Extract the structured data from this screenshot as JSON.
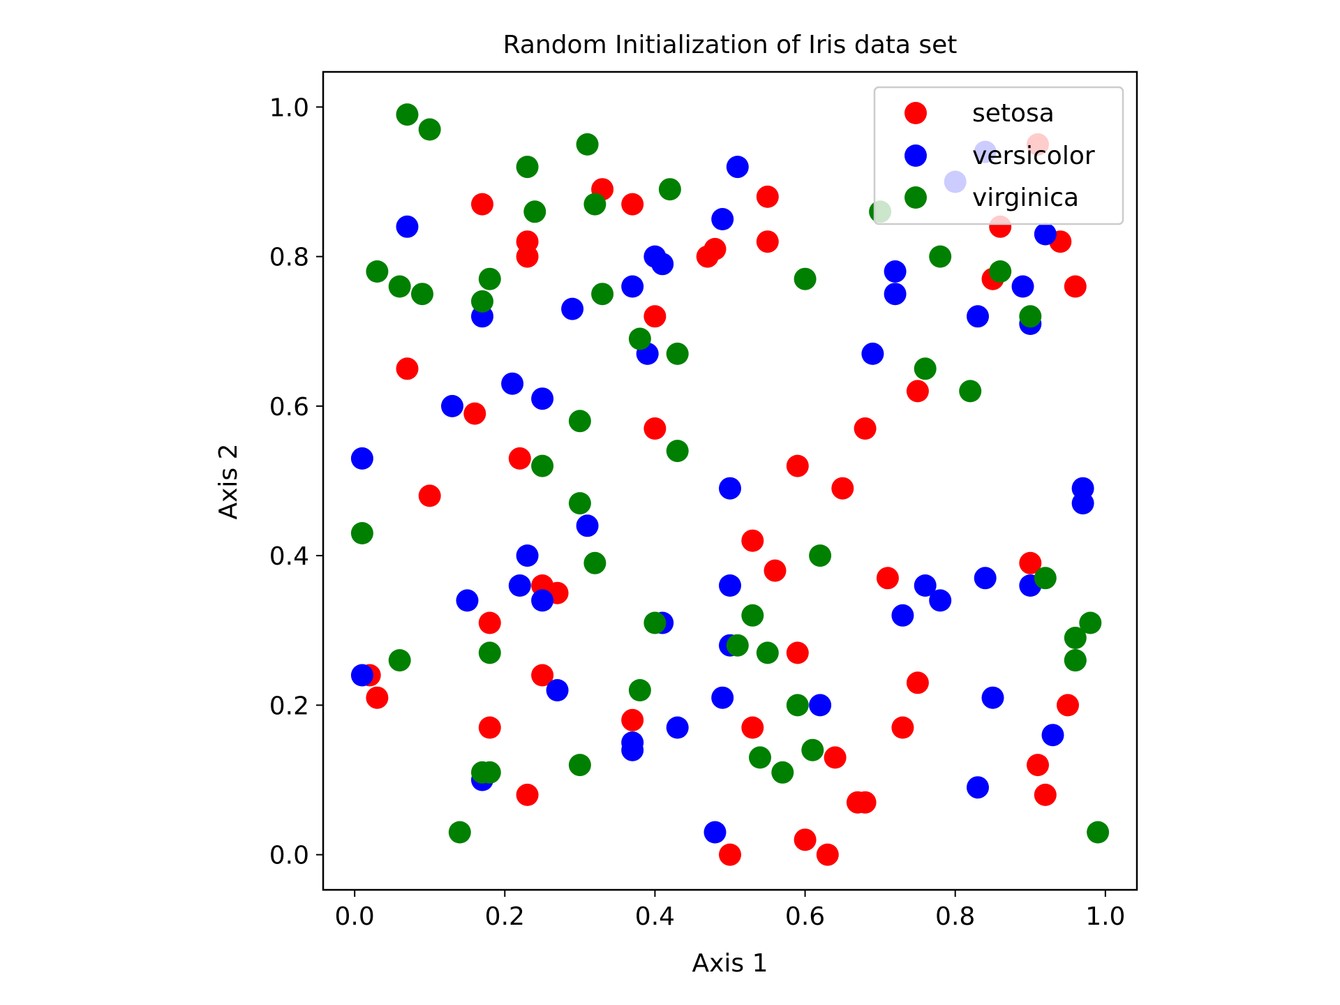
{
  "chart_data": {
    "type": "scatter",
    "title": "Random Initialization of Iris data set",
    "xlabel": "Axis 1",
    "ylabel": "Axis 2",
    "xlim": [
      -0.042,
      1.042
    ],
    "ylim": [
      -0.047,
      1.047
    ],
    "x_ticks": [
      "0.0",
      "0.2",
      "0.4",
      "0.6",
      "0.8",
      "1.0"
    ],
    "y_ticks": [
      "0.0",
      "0.2",
      "0.4",
      "0.6",
      "0.8",
      "1.0"
    ],
    "grid": false,
    "legend_position": "top-right",
    "series": [
      {
        "name": "setosa",
        "color": "#ff0000",
        "points": [
          [
            0.02,
            0.24
          ],
          [
            0.03,
            0.21
          ],
          [
            0.07,
            0.65
          ],
          [
            0.1,
            0.48
          ],
          [
            0.16,
            0.59
          ],
          [
            0.17,
            0.87
          ],
          [
            0.18,
            0.17
          ],
          [
            0.18,
            0.31
          ],
          [
            0.22,
            0.53
          ],
          [
            0.23,
            0.82
          ],
          [
            0.23,
            0.8
          ],
          [
            0.23,
            0.08
          ],
          [
            0.25,
            0.24
          ],
          [
            0.25,
            0.36
          ],
          [
            0.27,
            0.35
          ],
          [
            0.33,
            0.89
          ],
          [
            0.37,
            0.87
          ],
          [
            0.37,
            0.18
          ],
          [
            0.4,
            0.57
          ],
          [
            0.4,
            0.72
          ],
          [
            0.47,
            0.8
          ],
          [
            0.48,
            0.81
          ],
          [
            0.5,
            0.0
          ],
          [
            0.53,
            0.42
          ],
          [
            0.53,
            0.17
          ],
          [
            0.55,
            0.88
          ],
          [
            0.55,
            0.82
          ],
          [
            0.56,
            0.38
          ],
          [
            0.59,
            0.52
          ],
          [
            0.59,
            0.27
          ],
          [
            0.6,
            0.02
          ],
          [
            0.63,
            0.0
          ],
          [
            0.64,
            0.13
          ],
          [
            0.65,
            0.49
          ],
          [
            0.67,
            0.07
          ],
          [
            0.68,
            0.57
          ],
          [
            0.68,
            0.07
          ],
          [
            0.71,
            0.37
          ],
          [
            0.73,
            0.17
          ],
          [
            0.75,
            0.62
          ],
          [
            0.75,
            0.23
          ],
          [
            0.85,
            0.77
          ],
          [
            0.86,
            0.84
          ],
          [
            0.9,
            0.39
          ],
          [
            0.91,
            0.12
          ],
          [
            0.91,
            0.95
          ],
          [
            0.92,
            0.08
          ],
          [
            0.94,
            0.82
          ],
          [
            0.95,
            0.2
          ],
          [
            0.96,
            0.76
          ]
        ]
      },
      {
        "name": "versicolor",
        "color": "#0000ff",
        "points": [
          [
            0.01,
            0.53
          ],
          [
            0.01,
            0.24
          ],
          [
            0.07,
            0.84
          ],
          [
            0.13,
            0.6
          ],
          [
            0.15,
            0.34
          ],
          [
            0.17,
            0.72
          ],
          [
            0.17,
            0.1
          ],
          [
            0.21,
            0.63
          ],
          [
            0.22,
            0.36
          ],
          [
            0.23,
            0.4
          ],
          [
            0.25,
            0.61
          ],
          [
            0.25,
            0.34
          ],
          [
            0.27,
            0.22
          ],
          [
            0.29,
            0.73
          ],
          [
            0.31,
            0.44
          ],
          [
            0.37,
            0.15
          ],
          [
            0.37,
            0.14
          ],
          [
            0.37,
            0.76
          ],
          [
            0.39,
            0.67
          ],
          [
            0.4,
            0.8
          ],
          [
            0.41,
            0.79
          ],
          [
            0.41,
            0.31
          ],
          [
            0.43,
            0.17
          ],
          [
            0.48,
            0.03
          ],
          [
            0.49,
            0.85
          ],
          [
            0.49,
            0.21
          ],
          [
            0.5,
            0.49
          ],
          [
            0.5,
            0.36
          ],
          [
            0.5,
            0.28
          ],
          [
            0.51,
            0.92
          ],
          [
            0.62,
            0.2
          ],
          [
            0.69,
            0.67
          ],
          [
            0.72,
            0.78
          ],
          [
            0.72,
            0.75
          ],
          [
            0.73,
            0.32
          ],
          [
            0.76,
            0.36
          ],
          [
            0.78,
            0.34
          ],
          [
            0.8,
            0.9
          ],
          [
            0.83,
            0.72
          ],
          [
            0.83,
            0.09
          ],
          [
            0.84,
            0.94
          ],
          [
            0.84,
            0.37
          ],
          [
            0.85,
            0.21
          ],
          [
            0.89,
            0.76
          ],
          [
            0.9,
            0.71
          ],
          [
            0.9,
            0.36
          ],
          [
            0.92,
            0.83
          ],
          [
            0.93,
            0.16
          ],
          [
            0.97,
            0.49
          ],
          [
            0.97,
            0.47
          ]
        ]
      },
      {
        "name": "virginica",
        "color": "#008000",
        "points": [
          [
            0.01,
            0.43
          ],
          [
            0.03,
            0.78
          ],
          [
            0.06,
            0.76
          ],
          [
            0.06,
            0.26
          ],
          [
            0.07,
            0.99
          ],
          [
            0.09,
            0.75
          ],
          [
            0.1,
            0.97
          ],
          [
            0.14,
            0.03
          ],
          [
            0.17,
            0.74
          ],
          [
            0.17,
            0.11
          ],
          [
            0.18,
            0.77
          ],
          [
            0.18,
            0.11
          ],
          [
            0.18,
            0.27
          ],
          [
            0.23,
            0.92
          ],
          [
            0.24,
            0.86
          ],
          [
            0.25,
            0.52
          ],
          [
            0.3,
            0.58
          ],
          [
            0.3,
            0.12
          ],
          [
            0.3,
            0.47
          ],
          [
            0.31,
            0.95
          ],
          [
            0.32,
            0.87
          ],
          [
            0.32,
            0.39
          ],
          [
            0.33,
            0.75
          ],
          [
            0.38,
            0.69
          ],
          [
            0.38,
            0.22
          ],
          [
            0.4,
            0.31
          ],
          [
            0.42,
            0.89
          ],
          [
            0.43,
            0.67
          ],
          [
            0.43,
            0.54
          ],
          [
            0.51,
            0.28
          ],
          [
            0.53,
            0.32
          ],
          [
            0.54,
            0.13
          ],
          [
            0.55,
            0.27
          ],
          [
            0.57,
            0.11
          ],
          [
            0.59,
            0.2
          ],
          [
            0.6,
            0.77
          ],
          [
            0.61,
            0.14
          ],
          [
            0.62,
            0.4
          ],
          [
            0.7,
            0.86
          ],
          [
            0.76,
            0.65
          ],
          [
            0.78,
            0.8
          ],
          [
            0.82,
            0.62
          ],
          [
            0.86,
            0.78
          ],
          [
            0.9,
            0.72
          ],
          [
            0.92,
            0.37
          ],
          [
            0.96,
            0.26
          ],
          [
            0.96,
            0.26
          ],
          [
            0.96,
            0.29
          ],
          [
            0.98,
            0.31
          ],
          [
            0.99,
            0.03
          ]
        ]
      }
    ]
  }
}
